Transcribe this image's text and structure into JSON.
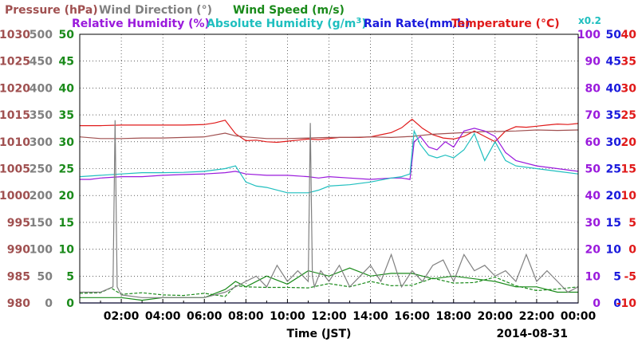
{
  "chart_data": {
    "type": "line",
    "legend": {
      "row1": [
        "Pressure (hPa)",
        "Wind Direction (°)",
        "Wind Speed (m/s)"
      ],
      "row2": [
        "Relative Humidity (%)",
        "Absolute Humidity (g/m",
        "3",
        ")",
        "Rain Rate(mm/h)",
        "Temperature (°C)"
      ],
      "note": "x0.2"
    },
    "xlabel": "Time (JST)",
    "date": "2014-08-31",
    "x_ticks": [
      "02:00",
      "04:00",
      "06:00",
      "08:00",
      "10:00",
      "12:00",
      "14:00",
      "16:00",
      "18:00",
      "20:00",
      "22:00",
      "00:00"
    ],
    "xlim_hours": [
      0,
      24
    ],
    "y_axes": [
      {
        "name": "Pressure (hPa)",
        "color": "#a05050",
        "ticks": [
          980,
          985,
          990,
          995,
          1000,
          1005,
          1010,
          1015,
          1020,
          1025,
          1030
        ],
        "range": [
          980,
          1030
        ]
      },
      {
        "name": "Wind Direction (°)",
        "color": "#808080",
        "ticks": [
          0,
          50,
          100,
          150,
          200,
          250,
          300,
          350,
          400,
          450,
          500
        ],
        "range": [
          0,
          500
        ]
      },
      {
        "name": "Wind Speed (m/s)",
        "color": "#1a8a1a",
        "ticks": [
          0,
          5,
          10,
          15,
          20,
          25,
          30,
          35,
          40,
          45,
          50
        ],
        "range": [
          0,
          50
        ]
      },
      {
        "name": "Relative Humidity (%)",
        "color": "#9a1adc",
        "ticks": [
          0,
          10,
          20,
          30,
          40,
          50,
          60,
          70,
          80,
          90,
          100
        ],
        "range": [
          0,
          100
        ]
      },
      {
        "name": "Rain Rate(mm/h)",
        "color": "#1a1adc",
        "ticks": [
          0,
          5,
          10,
          15,
          20,
          25,
          30,
          35,
          40,
          45,
          50
        ],
        "range": [
          0,
          50
        ]
      },
      {
        "name": "Temperature (°C)",
        "color": "#e01a1a",
        "ticks": [
          -10,
          -5,
          0,
          5,
          10,
          15,
          20,
          25,
          30,
          35,
          40
        ],
        "range": [
          -10,
          40
        ]
      }
    ],
    "grid": true,
    "series": [
      {
        "name": "Temperature (°C)",
        "color": "#e01a1a",
        "axis": 5,
        "x": [
          0,
          1,
          2,
          3,
          4,
          5,
          6,
          6.5,
          7,
          7.5,
          8,
          8.5,
          9,
          9.5,
          10,
          10.5,
          11,
          11.5,
          12,
          12.5,
          13,
          13.5,
          14,
          14.5,
          15,
          15.5,
          16,
          16.5,
          17,
          17.5,
          18,
          18.5,
          19,
          19.5,
          20,
          20.5,
          21,
          21.5,
          22,
          22.5,
          23,
          23.5,
          24
        ],
        "y": [
          23.0,
          23.0,
          23.1,
          23.1,
          23.1,
          23.1,
          23.2,
          23.5,
          24.0,
          21.5,
          20.2,
          20.3,
          20.0,
          19.9,
          20.1,
          20.3,
          20.5,
          20.4,
          20.6,
          20.8,
          20.8,
          20.8,
          20.9,
          21.3,
          21.7,
          22.6,
          24.2,
          22.5,
          21.3,
          20.7,
          20.5,
          21.0,
          22.0,
          21.0,
          20.0,
          22.0,
          22.8,
          22.7,
          22.9,
          23.1,
          23.3,
          23.2,
          23.4
        ]
      },
      {
        "name": "Pressure (hPa)",
        "color": "#a05050",
        "axis": 0,
        "x": [
          0,
          1,
          2,
          3,
          4,
          5,
          6,
          7,
          7.5,
          8,
          9,
          10,
          11,
          12,
          13,
          14,
          15,
          16,
          16.5,
          17,
          18,
          19,
          19.5,
          20,
          21,
          22,
          23,
          24
        ],
        "y": [
          1010.9,
          1010.6,
          1010.6,
          1010.7,
          1010.7,
          1010.8,
          1010.9,
          1011.6,
          1011.1,
          1010.9,
          1010.6,
          1010.6,
          1010.7,
          1010.8,
          1010.8,
          1010.9,
          1010.8,
          1011.0,
          1011.2,
          1011.4,
          1011.6,
          1011.8,
          1011.9,
          1011.9,
          1012.0,
          1012.2,
          1012.1,
          1012.2
        ]
      },
      {
        "name": "Relative Humidity (%)",
        "color": "#9a1adc",
        "axis": 3,
        "x": [
          0,
          0.5,
          1,
          2,
          3,
          4,
          5,
          6,
          7,
          7.5,
          8,
          9,
          10,
          11,
          11.5,
          12,
          13,
          14,
          15,
          15.5,
          15.9,
          16.1,
          16.4,
          16.8,
          17.2,
          17.6,
          18,
          18.5,
          19,
          19.5,
          20,
          20.5,
          21,
          22,
          23,
          24
        ],
        "y": [
          46,
          46,
          46.5,
          47,
          47,
          47.5,
          47.8,
          48,
          48.5,
          49,
          48,
          47.5,
          47.5,
          47,
          46.5,
          47,
          46.5,
          46,
          46.5,
          46.5,
          46,
          60,
          62,
          58,
          57,
          60,
          58,
          64,
          65,
          64,
          62,
          56,
          53,
          51,
          50,
          49
        ]
      },
      {
        "name": "Absolute Humidity (g/m3)",
        "color": "#1fbfbf",
        "axis": 3,
        "x": [
          0,
          1,
          2,
          3,
          4,
          5,
          6,
          7,
          7.5,
          8,
          8.5,
          9,
          10,
          11,
          11.5,
          12,
          13,
          14,
          15,
          15.5,
          15.9,
          16.1,
          16.4,
          16.8,
          17.2,
          17.6,
          18,
          18.5,
          19,
          19.5,
          20,
          20.5,
          21,
          22,
          23,
          24
        ],
        "y": [
          47,
          47.5,
          48,
          48.5,
          48.5,
          48.6,
          49,
          50,
          51,
          45,
          43.5,
          43,
          41,
          41,
          42,
          43.5,
          44,
          45,
          46.5,
          47,
          48,
          64,
          59,
          55,
          54,
          55,
          54,
          57,
          63,
          53,
          60,
          53,
          51,
          50,
          49,
          48
        ]
      },
      {
        "name": "Wind Speed (m/s)",
        "color": "#1a8a1a",
        "axis": 2,
        "dashed": true,
        "x": [
          0,
          1,
          1.5,
          2,
          3,
          4,
          5,
          6,
          7,
          7.5,
          8,
          9,
          10,
          11,
          12,
          13,
          14,
          15,
          16,
          17,
          18,
          19,
          20,
          21,
          22,
          23,
          24
        ],
        "y": [
          1.8,
          1.9,
          2.8,
          1.6,
          1.9,
          1.5,
          1.4,
          1.8,
          1.2,
          3.2,
          3.0,
          2.9,
          2.9,
          2.8,
          3.6,
          3.0,
          4.0,
          3.2,
          3.3,
          4.6,
          3.7,
          3.8,
          4.8,
          3.2,
          2.3,
          2.6,
          3.0
        ]
      },
      {
        "name": "Wind Speed gust (m/s)",
        "color": "#1a8a1a",
        "axis": 2,
        "x": [
          0,
          1,
          2,
          3,
          4,
          5,
          6,
          7,
          7.5,
          8,
          9,
          10,
          11,
          12,
          13,
          14,
          15,
          16,
          17,
          18,
          19,
          20,
          21,
          22,
          23,
          24
        ],
        "y": [
          1,
          1,
          1,
          0.5,
          1,
          1,
          1,
          2.5,
          4,
          3,
          5,
          3.5,
          6,
          5,
          6.5,
          5,
          5.5,
          5.5,
          4.5,
          5,
          4.5,
          4,
          3,
          3,
          2,
          2
        ]
      },
      {
        "name": "Wind Direction (°)",
        "color": "#808080",
        "axis": 1,
        "x": [
          0,
          1,
          1.6,
          1.7,
          1.8,
          2,
          3,
          4,
          5,
          6,
          7,
          8,
          8.5,
          9,
          9.5,
          10,
          10.5,
          11,
          11.1,
          11.2,
          11.3,
          11.6,
          12,
          12.5,
          13,
          13.5,
          14,
          14.5,
          15,
          15.5,
          16,
          16.5,
          17,
          17.5,
          18,
          18.5,
          19,
          19.5,
          20,
          20.5,
          21,
          21.5,
          22,
          22.5,
          23,
          23.5,
          24
        ],
        "y": [
          20,
          20,
          30,
          340,
          30,
          15,
          10,
          10,
          10,
          10,
          20,
          40,
          50,
          30,
          70,
          40,
          60,
          40,
          335,
          50,
          30,
          60,
          40,
          70,
          30,
          50,
          70,
          40,
          90,
          30,
          60,
          40,
          70,
          80,
          40,
          90,
          60,
          70,
          50,
          60,
          40,
          90,
          40,
          60,
          40,
          20,
          30
        ]
      },
      {
        "name": "Rain Rate(mm/h)",
        "color": "#1a1adc",
        "axis": 4,
        "x": [
          0,
          24
        ],
        "y": [
          0,
          0
        ]
      }
    ]
  }
}
